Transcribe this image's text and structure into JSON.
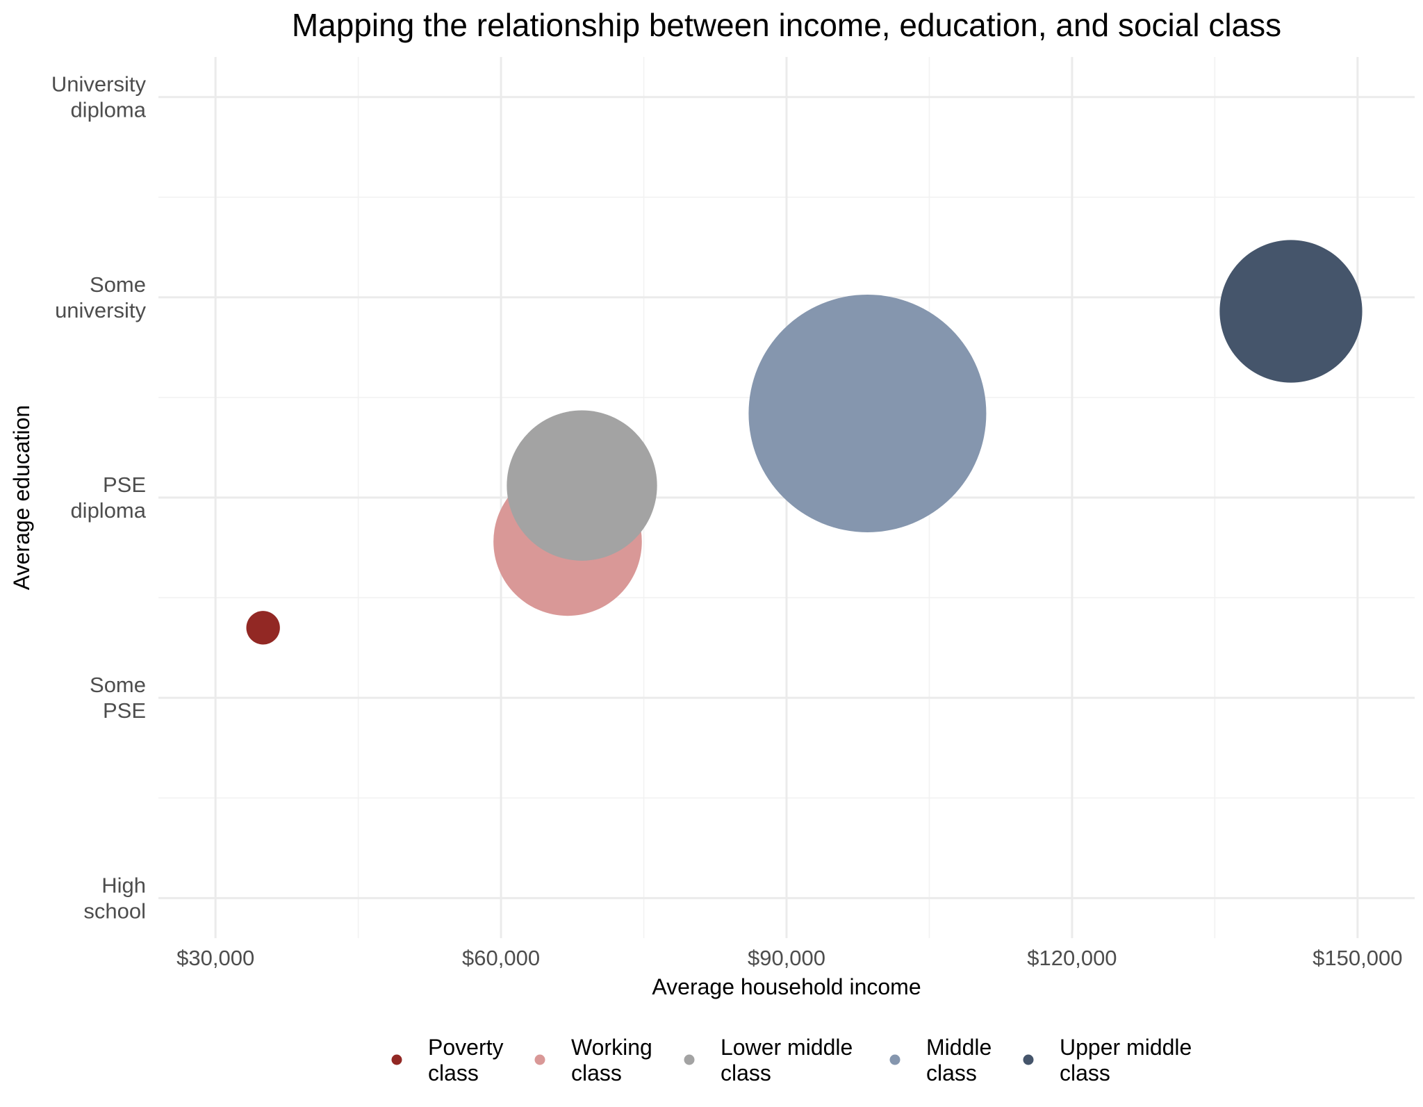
{
  "chart_data": {
    "type": "scatter",
    "title": "Mapping the relationship between income, education, and social class",
    "xlabel": "Average household income",
    "ylabel": "Average education",
    "xlim": [
      24000,
      156000
    ],
    "ylim": [
      0.8,
      5.2
    ],
    "x_ticks": [
      {
        "value": 30000,
        "label": "$30,000"
      },
      {
        "value": 60000,
        "label": "$60,000"
      },
      {
        "value": 90000,
        "label": "$90,000"
      },
      {
        "value": 120000,
        "label": "$120,000"
      },
      {
        "value": 150000,
        "label": "$150,000"
      }
    ],
    "y_ticks": [
      {
        "value": 1,
        "label": [
          "High",
          "school"
        ]
      },
      {
        "value": 2,
        "label": [
          "Some",
          "PSE"
        ]
      },
      {
        "value": 3,
        "label": [
          "PSE",
          "diploma"
        ]
      },
      {
        "value": 4,
        "label": [
          "Some",
          "university"
        ]
      },
      {
        "value": 5,
        "label": [
          "University",
          "diploma"
        ]
      }
    ],
    "grid": true,
    "legend_position": "bottom",
    "series": [
      {
        "name": [
          "Poverty",
          "class"
        ],
        "x": 35000,
        "y": 2.35,
        "size": 2,
        "color": "#922824"
      },
      {
        "name": [
          "Working",
          "class"
        ],
        "x": 67000,
        "y": 2.78,
        "size": 39,
        "color": "#d99897"
      },
      {
        "name": [
          "Lower middle",
          "class"
        ],
        "x": 68500,
        "y": 3.06,
        "size": 40,
        "color": "#a3a3a3"
      },
      {
        "name": [
          "Middle",
          "class"
        ],
        "x": 98500,
        "y": 3.42,
        "size": 100,
        "color": "#8596ae"
      },
      {
        "name": [
          "Upper middle",
          "class"
        ],
        "x": 143000,
        "y": 3.93,
        "size": 36,
        "color": "#45556b"
      }
    ]
  }
}
